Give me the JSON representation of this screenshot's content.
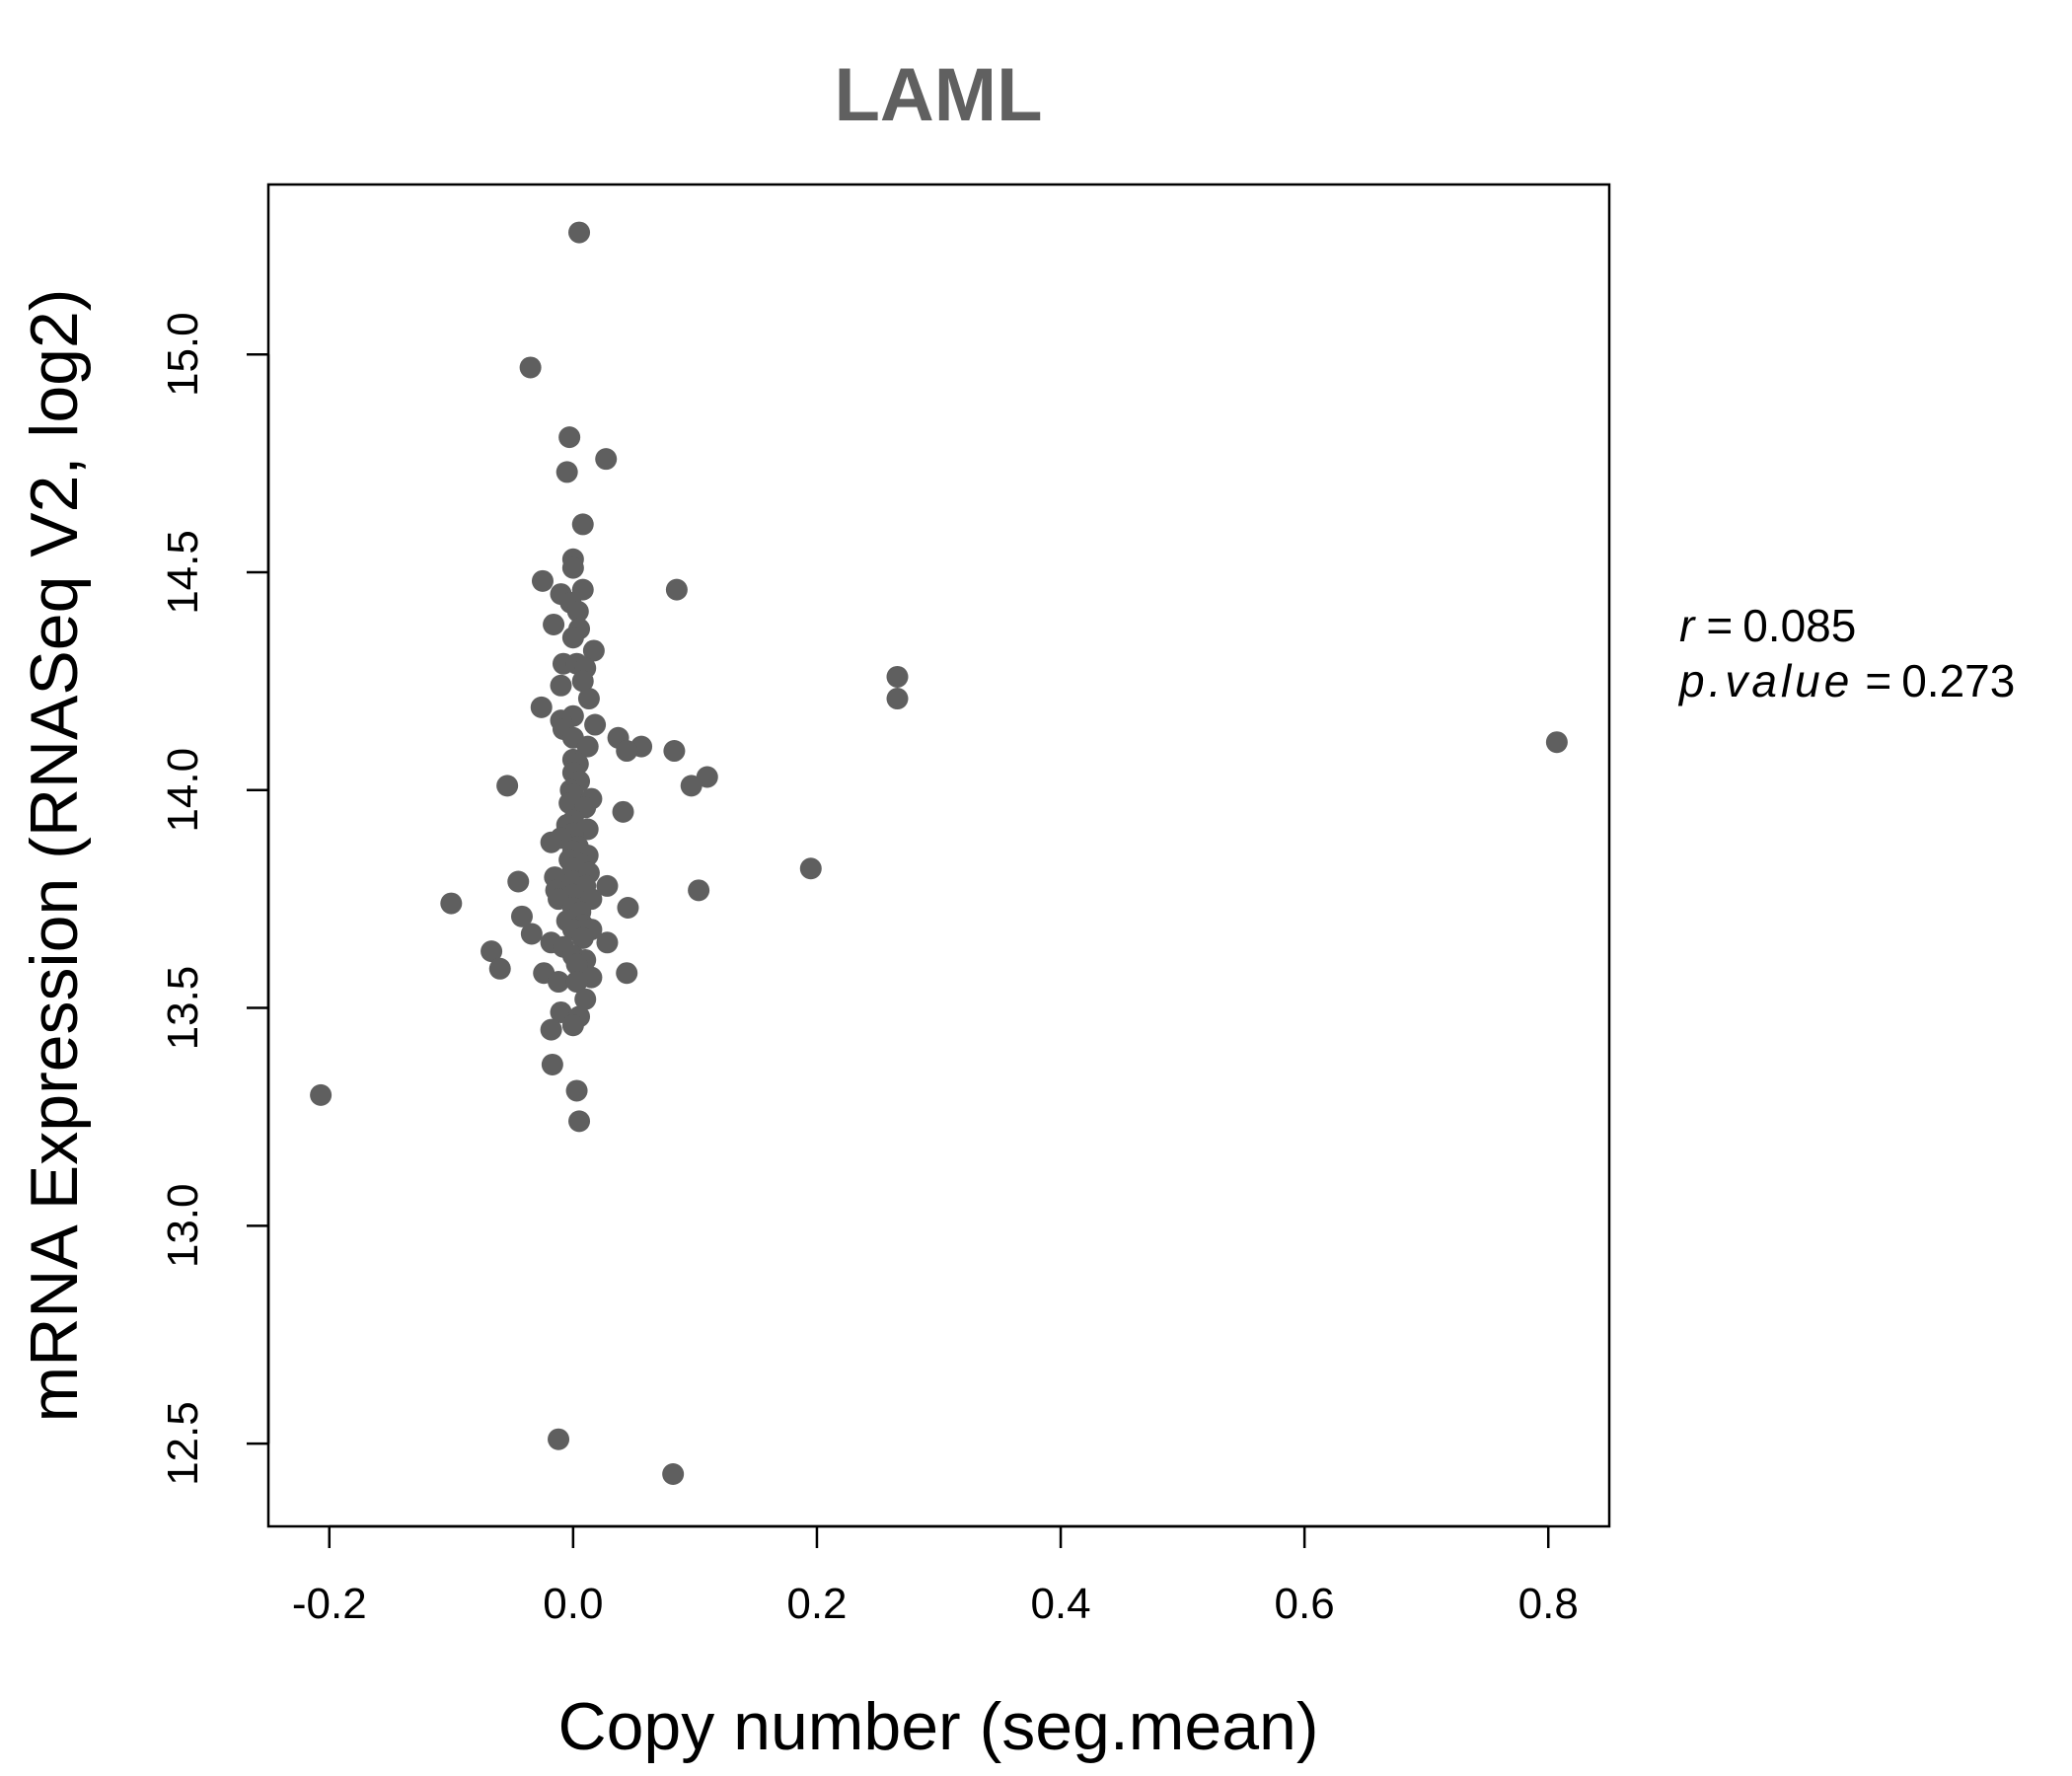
{
  "chart_data": {
    "type": "scatter",
    "title": "LAML",
    "xlabel": "Copy number (seg.mean)",
    "ylabel": "mRNA Expression (RNASeq V2, log2)",
    "xlim": [
      -0.25,
      0.85
    ],
    "ylim": [
      12.31,
      15.39
    ],
    "x_ticks": [
      -0.2,
      0.0,
      0.2,
      0.4,
      0.6,
      0.8
    ],
    "x_tick_labels": [
      "-0.2",
      "0.0",
      "0.2",
      "0.4",
      "0.6",
      "0.8"
    ],
    "y_ticks": [
      12.5,
      13.0,
      13.5,
      14.0,
      14.5,
      15.0
    ],
    "y_tick_labels": [
      "12.5",
      "13.0",
      "13.5",
      "14.0",
      "14.5",
      "15.0"
    ],
    "grid": false,
    "point_color": "#5f5f5f",
    "stats": {
      "r_label": "r",
      "r_value": "0.085",
      "p_label": "p.value",
      "p_value": "0.273"
    },
    "points": [
      [
        0.005,
        15.28
      ],
      [
        -0.035,
        14.97
      ],
      [
        -0.003,
        14.81
      ],
      [
        -0.005,
        14.73
      ],
      [
        0.027,
        14.76
      ],
      [
        0.008,
        14.61
      ],
      [
        0.0,
        14.53
      ],
      [
        0.0,
        14.51
      ],
      [
        -0.025,
        14.48
      ],
      [
        -0.01,
        14.45
      ],
      [
        0.008,
        14.46
      ],
      [
        0.085,
        14.46
      ],
      [
        -0.002,
        14.43
      ],
      [
        0.004,
        14.41
      ],
      [
        -0.016,
        14.38
      ],
      [
        0.005,
        14.37
      ],
      [
        0.0,
        14.35
      ],
      [
        0.017,
        14.32
      ],
      [
        -0.008,
        14.29
      ],
      [
        0.003,
        14.29
      ],
      [
        0.01,
        14.28
      ],
      [
        0.008,
        14.25
      ],
      [
        -0.01,
        14.24
      ],
      [
        0.266,
        14.26
      ],
      [
        0.266,
        14.21
      ],
      [
        0.013,
        14.21
      ],
      [
        -0.026,
        14.19
      ],
      [
        0.0,
        14.17
      ],
      [
        -0.01,
        14.16
      ],
      [
        0.018,
        14.15
      ],
      [
        -0.008,
        14.14
      ],
      [
        0.0,
        14.12
      ],
      [
        0.037,
        14.12
      ],
      [
        0.012,
        14.1
      ],
      [
        0.056,
        14.1
      ],
      [
        0.044,
        14.09
      ],
      [
        0.083,
        14.09
      ],
      [
        0.0,
        14.07
      ],
      [
        0.807,
        14.11
      ],
      [
        0.004,
        14.06
      ],
      [
        0.0,
        14.04
      ],
      [
        0.11,
        14.03
      ],
      [
        0.005,
        14.02
      ],
      [
        -0.054,
        14.01
      ],
      [
        0.097,
        14.01
      ],
      [
        -0.002,
        14.0
      ],
      [
        0.0,
        13.99
      ],
      [
        0.015,
        13.98
      ],
      [
        -0.003,
        13.97
      ],
      [
        0.01,
        13.96
      ],
      [
        0.041,
        13.95
      ],
      [
        0.0,
        13.93
      ],
      [
        -0.005,
        13.92
      ],
      [
        0.012,
        13.91
      ],
      [
        0.0,
        13.9
      ],
      [
        -0.01,
        13.89
      ],
      [
        -0.018,
        13.88
      ],
      [
        0.004,
        13.87
      ],
      [
        0.0,
        13.86
      ],
      [
        0.012,
        13.85
      ],
      [
        -0.003,
        13.84
      ],
      [
        0.006,
        13.83
      ],
      [
        0.0,
        13.82
      ],
      [
        0.195,
        13.82
      ],
      [
        0.013,
        13.81
      ],
      [
        -0.015,
        13.8
      ],
      [
        0.0,
        13.79
      ],
      [
        -0.045,
        13.79
      ],
      [
        0.01,
        13.78
      ],
      [
        -0.014,
        13.77
      ],
      [
        0.028,
        13.78
      ],
      [
        0.103,
        13.77
      ],
      [
        0.0,
        13.76
      ],
      [
        -0.012,
        13.75
      ],
      [
        0.015,
        13.75
      ],
      [
        -0.1,
        13.74
      ],
      [
        0.0,
        13.73
      ],
      [
        0.045,
        13.73
      ],
      [
        0.006,
        13.72
      ],
      [
        -0.042,
        13.71
      ],
      [
        -0.005,
        13.7
      ],
      [
        0.008,
        13.69
      ],
      [
        0.0,
        13.68
      ],
      [
        0.015,
        13.68
      ],
      [
        -0.034,
        13.67
      ],
      [
        0.008,
        13.66
      ],
      [
        0.028,
        13.65
      ],
      [
        -0.018,
        13.65
      ],
      [
        -0.008,
        13.64
      ],
      [
        -0.067,
        13.63
      ],
      [
        0.0,
        13.62
      ],
      [
        0.01,
        13.61
      ],
      [
        0.003,
        13.6
      ],
      [
        -0.06,
        13.59
      ],
      [
        -0.024,
        13.58
      ],
      [
        0.044,
        13.58
      ],
      [
        0.015,
        13.57
      ],
      [
        -0.012,
        13.56
      ],
      [
        0.003,
        13.56
      ],
      [
        0.01,
        13.52
      ],
      [
        -0.01,
        13.49
      ],
      [
        0.005,
        13.48
      ],
      [
        0.0,
        13.46
      ],
      [
        -0.018,
        13.45
      ],
      [
        -0.017,
        13.37
      ],
      [
        0.003,
        13.31
      ],
      [
        -0.207,
        13.3
      ],
      [
        0.005,
        13.24
      ],
      [
        -0.012,
        12.51
      ],
      [
        0.082,
        12.43
      ]
    ]
  }
}
